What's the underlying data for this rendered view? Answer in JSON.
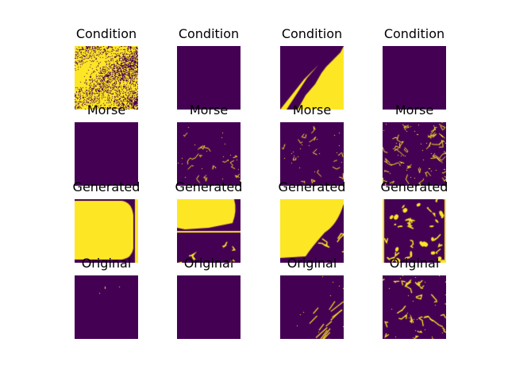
{
  "colors": {
    "low": "#440154",
    "high": "#fde725"
  },
  "rows": [
    {
      "title": "Condition",
      "panels": [
        {
          "name": "condition-panel-1",
          "icon": "noisy-speckle-mask"
        },
        {
          "name": "condition-panel-2",
          "icon": "empty-mask"
        },
        {
          "name": "condition-panel-3",
          "icon": "lower-right-blob-mask"
        },
        {
          "name": "condition-panel-4",
          "icon": "empty-mask"
        }
      ]
    },
    {
      "title": "Morse",
      "panels": [
        {
          "name": "morse-panel-1",
          "icon": "empty-mask"
        },
        {
          "name": "morse-panel-2",
          "icon": "sparse-lines-mask"
        },
        {
          "name": "morse-panel-3",
          "icon": "sparse-lines-mask"
        },
        {
          "name": "morse-panel-4",
          "icon": "dense-lines-mask"
        }
      ]
    },
    {
      "title": "Generated",
      "panels": [
        {
          "name": "generated-panel-1",
          "icon": "full-blob-mask"
        },
        {
          "name": "generated-panel-2",
          "icon": "upper-blob-mask"
        },
        {
          "name": "generated-panel-3",
          "icon": "upper-left-blob-mask"
        },
        {
          "name": "generated-panel-4",
          "icon": "scattered-blobs-mask"
        }
      ]
    },
    {
      "title": "Original",
      "panels": [
        {
          "name": "original-panel-1",
          "icon": "nearly-empty-mask"
        },
        {
          "name": "original-panel-2",
          "icon": "empty-mask"
        },
        {
          "name": "original-panel-3",
          "icon": "diagonal-lines-mask"
        },
        {
          "name": "original-panel-4",
          "icon": "branching-lines-mask"
        }
      ]
    }
  ]
}
